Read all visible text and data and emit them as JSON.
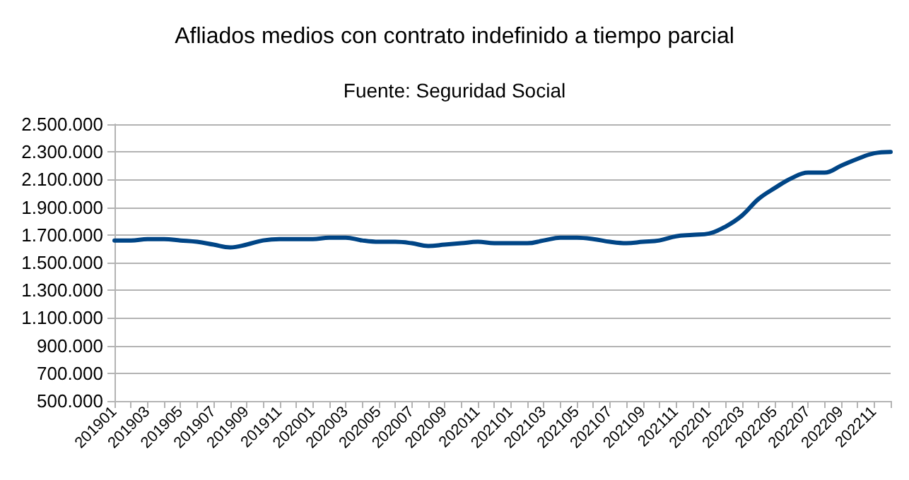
{
  "chart_data": {
    "type": "line",
    "title": "Afliados medios con contrato indefinido a tiempo parcial",
    "subtitle": "Fuente: Seguridad Social",
    "categories": [
      "201901",
      null,
      "201903",
      null,
      "201905",
      null,
      "201907",
      null,
      "201909",
      null,
      "201911",
      null,
      "202001",
      null,
      "202003",
      null,
      "202005",
      null,
      "202007",
      null,
      "202009",
      null,
      "202011",
      null,
      "202101",
      null,
      "202103",
      null,
      "202105",
      null,
      "202107",
      null,
      "202109",
      null,
      "202111",
      null,
      "202201",
      null,
      "202203",
      null,
      "202205",
      null,
      "202207",
      null,
      "202209",
      null,
      "202211",
      null
    ],
    "series": [
      {
        "color": "#004586",
        "values": [
          1660000,
          1660000,
          1670000,
          1670000,
          1660000,
          1650000,
          1630000,
          1610000,
          1630000,
          1660000,
          1670000,
          1670000,
          1670000,
          1680000,
          1680000,
          1660000,
          1650000,
          1650000,
          1640000,
          1620000,
          1630000,
          1640000,
          1650000,
          1640000,
          1640000,
          1640000,
          1660000,
          1680000,
          1680000,
          1670000,
          1650000,
          1640000,
          1650000,
          1660000,
          1690000,
          1700000,
          1710000,
          1760000,
          1840000,
          1960000,
          2040000,
          2110000,
          2150000,
          2150000,
          2200000,
          2250000,
          2290000,
          2300000
        ]
      }
    ],
    "ylim": [
      500000,
      2500000
    ],
    "yticks": [
      {
        "value": 500000,
        "label": "500.000"
      },
      {
        "value": 700000,
        "label": "700.000"
      },
      {
        "value": 900000,
        "label": "900.000"
      },
      {
        "value": 1100000,
        "label": "1.100.000"
      },
      {
        "value": 1300000,
        "label": "1.300.000"
      },
      {
        "value": 1500000,
        "label": "1.500.000"
      },
      {
        "value": 1700000,
        "label": "1.700.000"
      },
      {
        "value": 1900000,
        "label": "1.900.000"
      },
      {
        "value": 2100000,
        "label": "2.100.000"
      },
      {
        "value": 2300000,
        "label": "2.300.000"
      },
      {
        "value": 2500000,
        "label": "2.500.000"
      }
    ],
    "grid": "y",
    "marker": "none",
    "line_style": "solid"
  }
}
